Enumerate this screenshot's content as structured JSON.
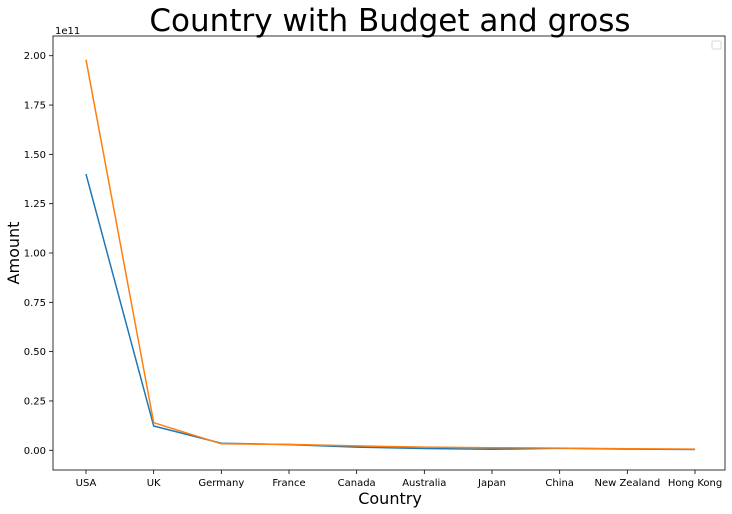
{
  "chart_data": {
    "type": "line",
    "title": "Country with Budget and gross",
    "xlabel": "Country",
    "ylabel": "Amount",
    "y_offset_label": "1e11",
    "categories": [
      "USA",
      "UK",
      "Germany",
      "France",
      "Canada",
      "Australia",
      "Japan",
      "China",
      "New Zealand",
      "Hong Kong"
    ],
    "series": [
      {
        "color": "#1f77b4",
        "values": [
          140000000000.0,
          12300000000.0,
          3600000000.0,
          2900000000.0,
          1600000000.0,
          900000000.0,
          500000000.0,
          1000000000.0,
          600000000.0,
          400000000.0
        ]
      },
      {
        "color": "#ff7f0e",
        "values": [
          198000000000.0,
          14000000000.0,
          3300000000.0,
          3000000000.0,
          2200000000.0,
          1600000000.0,
          1300000000.0,
          1100000000.0,
          800000000.0,
          600000000.0
        ]
      }
    ],
    "ylim": [
      -10000000000.0,
      210000000000.0
    ],
    "yticks": [
      "0.00",
      "0.25",
      "0.50",
      "0.75",
      "1.00",
      "1.25",
      "1.50",
      "1.75",
      "2.00"
    ],
    "ytick_values": [
      0,
      25000000000.0,
      50000000000.0,
      75000000000.0,
      100000000000.0,
      125000000000.0,
      150000000000.0,
      175000000000.0,
      200000000000.0
    ],
    "grid": false,
    "legend_placement": "top-right"
  }
}
